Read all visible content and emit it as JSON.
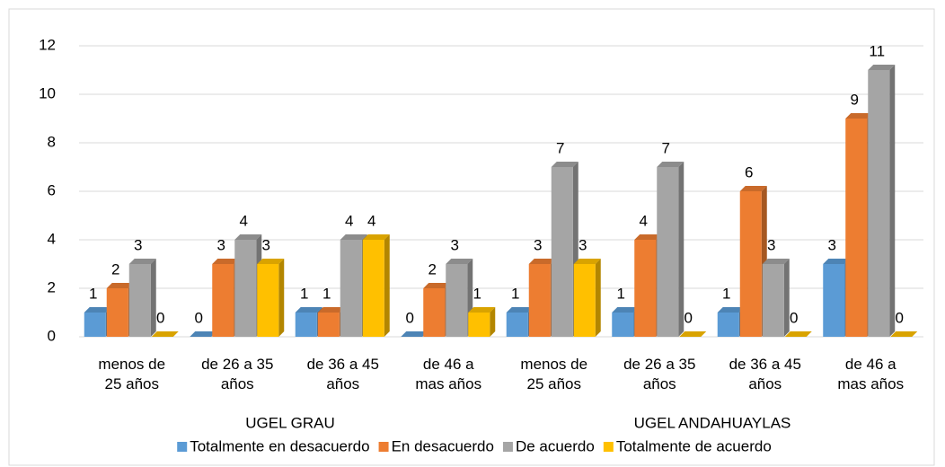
{
  "chart_data": {
    "type": "bar3d",
    "categories": [
      "menos de 25 años",
      "de 26 a 35 años",
      "de 36 a 45 años",
      "de 46 a mas años",
      "menos de 25 años",
      "de 26 a 35 años",
      "de 36 a 45 años",
      "de 46 a mas años"
    ],
    "groups": [
      "UGEL GRAU",
      "UGEL ANDAHUAYLAS"
    ],
    "series": [
      {
        "name": "Totalmente en desacuerdo",
        "color": "#5b9bd5",
        "values": [
          1,
          0,
          1,
          0,
          1,
          1,
          1,
          3
        ]
      },
      {
        "name": "En desacuerdo",
        "color": "#ed7d31",
        "values": [
          2,
          3,
          1,
          2,
          3,
          4,
          6,
          9
        ]
      },
      {
        "name": "De acuerdo",
        "color": "#a5a5a5",
        "values": [
          3,
          4,
          4,
          3,
          7,
          7,
          3,
          11
        ]
      },
      {
        "name": "Totalmente de acuerdo",
        "color": "#ffc000",
        "values": [
          0,
          3,
          4,
          1,
          3,
          0,
          0,
          0
        ]
      }
    ],
    "ylim": [
      0,
      12
    ],
    "yticks": [
      0,
      2,
      4,
      6,
      8,
      10,
      12
    ],
    "grid": true,
    "legend": "bottom"
  }
}
